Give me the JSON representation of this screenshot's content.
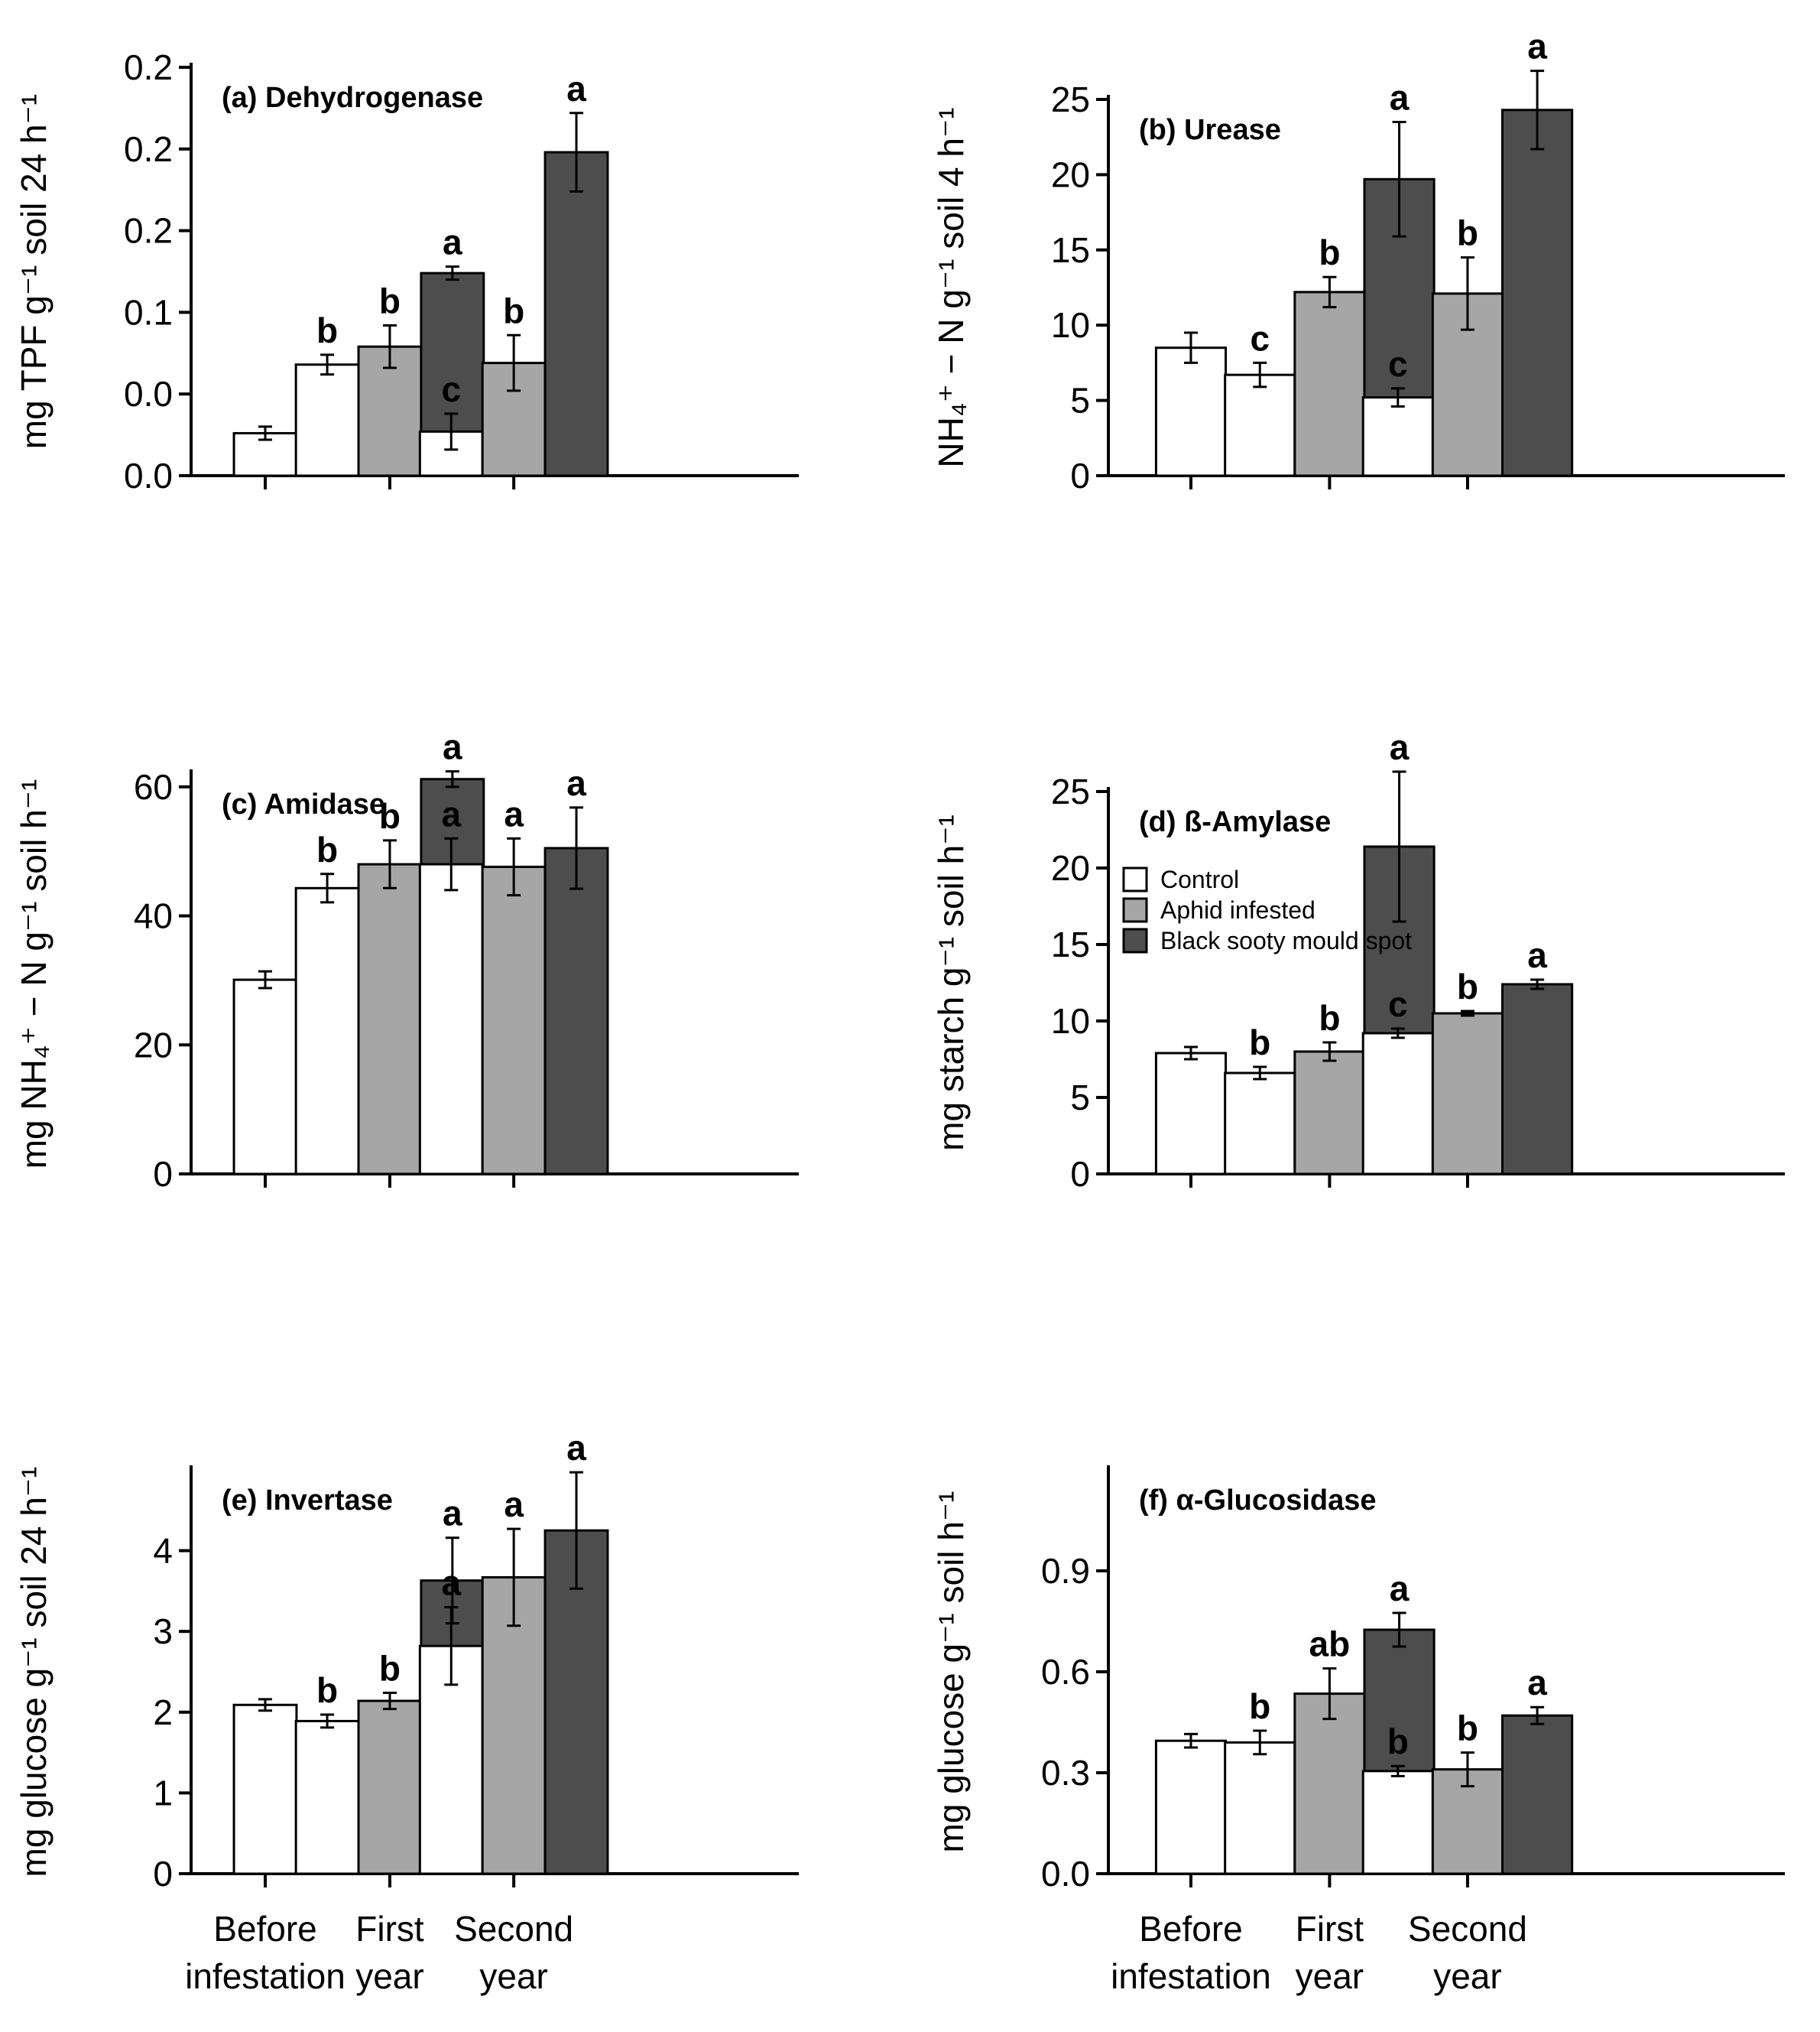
{
  "colors": {
    "Control": "#ffffff",
    "Aphid infested": "#a6a6a6",
    "Black sooty mould spot": "#4d4d4d",
    "axis": "#000000"
  },
  "legend": {
    "entries": [
      "Control",
      "Aphid infested",
      "Black sooty mould spot"
    ]
  },
  "x_categories": [
    [
      "Before",
      "infestation"
    ],
    [
      "First",
      "year"
    ],
    [
      "Second",
      "year"
    ]
  ],
  "chart_data": [
    {
      "type": "bar",
      "title": "(a) Dehydrogenase",
      "ylabel": "mg TPF g⁻¹ soil 24 h⁻¹",
      "ylim": [
        0,
        0.25
      ],
      "yticks": [
        0,
        0.05,
        0.1,
        0.15,
        0.2,
        0.25
      ],
      "ytick_labels": [
        "0.0",
        "0.0",
        "0.1",
        "0.2",
        "0.2",
        "0.2"
      ],
      "grid": false,
      "groups": [
        {
          "category": "Before infestation",
          "bars": [
            {
              "series": "Control",
              "value": 0.026,
              "err": 0.004,
              "letter": ""
            }
          ]
        },
        {
          "category": "First year",
          "bars": [
            {
              "series": "Control",
              "value": 0.068,
              "err": 0.006,
              "letter": "b"
            },
            {
              "series": "Aphid infested",
              "value": 0.079,
              "err": 0.013,
              "letter": "b"
            },
            {
              "series": "Black sooty mould spot",
              "value": 0.124,
              "err": 0.004,
              "letter": "a"
            }
          ]
        },
        {
          "category": "Second year",
          "bars": [
            {
              "series": "Control",
              "value": 0.027,
              "err": 0.011,
              "letter": "c"
            },
            {
              "series": "Aphid infested",
              "value": 0.069,
              "err": 0.017,
              "letter": "b"
            },
            {
              "series": "Black sooty mould spot",
              "value": 0.198,
              "err": 0.024,
              "letter": "a"
            }
          ]
        }
      ]
    },
    {
      "type": "bar",
      "title": "(b) Urease",
      "ylabel": "NH₄⁺ − N g⁻¹ soil 4 h⁻¹",
      "ylim": [
        0,
        25
      ],
      "yticks": [
        0,
        5,
        10,
        15,
        20,
        25
      ],
      "ytick_labels": [
        "0",
        "5",
        "10",
        "15",
        "20",
        "25"
      ],
      "grid": false,
      "groups": [
        {
          "category": "Before infestation",
          "bars": [
            {
              "series": "Control",
              "value": 8.5,
              "err": 1.0,
              "letter": ""
            }
          ]
        },
        {
          "category": "First year",
          "bars": [
            {
              "series": "Control",
              "value": 6.7,
              "err": 0.8,
              "letter": "c"
            },
            {
              "series": "Aphid infested",
              "value": 12.2,
              "err": 1.0,
              "letter": "b"
            },
            {
              "series": "Black sooty mould spot",
              "value": 19.7,
              "err": 3.8,
              "letter": "a"
            }
          ]
        },
        {
          "category": "Second year",
          "bars": [
            {
              "series": "Control",
              "value": 5.2,
              "err": 0.6,
              "letter": "c"
            },
            {
              "series": "Aphid infested",
              "value": 12.1,
              "err": 2.4,
              "letter": "b"
            },
            {
              "series": "Black sooty mould spot",
              "value": 24.3,
              "err": 2.6,
              "letter": "a"
            }
          ]
        }
      ]
    },
    {
      "type": "bar",
      "title": "(c) Amidase",
      "ylabel": "mg NH₄⁺ − N g⁻¹ soil h⁻¹",
      "ylim": [
        0,
        62
      ],
      "yticks": [
        0,
        20,
        40,
        60
      ],
      "ytick_labels": [
        "0",
        "20",
        "40",
        "60"
      ],
      "grid": false,
      "groups": [
        {
          "category": "Before infestation",
          "bars": [
            {
              "series": "Control",
              "value": 30.1,
              "err": 1.3,
              "letter": ""
            }
          ]
        },
        {
          "category": "First year",
          "bars": [
            {
              "series": "Control",
              "value": 44.3,
              "err": 2.2,
              "letter": "b"
            },
            {
              "series": "Aphid infested",
              "value": 48.0,
              "err": 3.7,
              "letter": "b"
            },
            {
              "series": "Black sooty mould spot",
              "value": 61.2,
              "err": 1.2,
              "letter": "a"
            }
          ]
        },
        {
          "category": "Second year",
          "bars": [
            {
              "series": "Control",
              "value": 48.0,
              "err": 4.0,
              "letter": "a"
            },
            {
              "series": "Aphid infested",
              "value": 47.6,
              "err": 4.4,
              "letter": "a"
            },
            {
              "series": "Black sooty mould spot",
              "value": 50.5,
              "err": 6.3,
              "letter": "a"
            }
          ]
        }
      ]
    },
    {
      "type": "bar",
      "title": "(d) ß-Amylase",
      "ylabel": "mg starch g⁻¹ soil h⁻¹",
      "ylim": [
        0,
        25
      ],
      "yticks": [
        0,
        5,
        10,
        15,
        20,
        25
      ],
      "ytick_labels": [
        "0",
        "5",
        "10",
        "15",
        "20",
        "25"
      ],
      "grid": false,
      "legend": "top-left",
      "groups": [
        {
          "category": "Before infestation",
          "bars": [
            {
              "series": "Control",
              "value": 7.9,
              "err": 0.4,
              "letter": ""
            }
          ]
        },
        {
          "category": "First year",
          "bars": [
            {
              "series": "Control",
              "value": 6.6,
              "err": 0.4,
              "letter": "b"
            },
            {
              "series": "Aphid infested",
              "value": 8.0,
              "err": 0.6,
              "letter": "b"
            },
            {
              "series": "Black sooty mould spot",
              "value": 21.4,
              "err": 4.9,
              "letter": "a"
            }
          ]
        },
        {
          "category": "Second year",
          "bars": [
            {
              "series": "Control",
              "value": 9.2,
              "err": 0.3,
              "letter": "c"
            },
            {
              "series": "Aphid infested",
              "value": 10.5,
              "err": 0.15,
              "letter": "b"
            },
            {
              "series": "Black sooty mould spot",
              "value": 12.4,
              "err": 0.3,
              "letter": "a"
            }
          ]
        }
      ]
    },
    {
      "type": "bar",
      "title": "(e) Invertase",
      "ylabel": "mg glucose g⁻¹ soil 24 h⁻¹",
      "ylim": [
        0,
        5
      ],
      "yticks": [
        0,
        1,
        2,
        3,
        4
      ],
      "ytick_labels": [
        "0",
        "1",
        "2",
        "3",
        "4"
      ],
      "grid": false,
      "groups": [
        {
          "category": "Before infestation",
          "bars": [
            {
              "series": "Control",
              "value": 2.09,
              "err": 0.07,
              "letter": ""
            }
          ]
        },
        {
          "category": "First year",
          "bars": [
            {
              "series": "Control",
              "value": 1.89,
              "err": 0.08,
              "letter": "b"
            },
            {
              "series": "Aphid infested",
              "value": 2.14,
              "err": 0.1,
              "letter": "b"
            },
            {
              "series": "Black sooty mould spot",
              "value": 3.63,
              "err": 0.53,
              "letter": "a"
            }
          ]
        },
        {
          "category": "Second year",
          "bars": [
            {
              "series": "Control",
              "value": 2.82,
              "err": 0.48,
              "letter": "a"
            },
            {
              "series": "Aphid infested",
              "value": 3.67,
              "err": 0.6,
              "letter": "a"
            },
            {
              "series": "Black sooty mould spot",
              "value": 4.25,
              "err": 0.72,
              "letter": "a"
            }
          ]
        }
      ]
    },
    {
      "type": "bar",
      "title": "(f) α-Glucosidase",
      "ylabel": "mg glucose g⁻¹ soil h⁻¹",
      "ylim": [
        0,
        1.2
      ],
      "yticks": [
        0,
        0.3,
        0.6,
        0.9
      ],
      "ytick_labels": [
        "0.0",
        "0.3",
        "0.6",
        "0.9"
      ],
      "grid": false,
      "groups": [
        {
          "category": "Before infestation",
          "bars": [
            {
              "series": "Control",
              "value": 0.395,
              "err": 0.02,
              "letter": ""
            }
          ]
        },
        {
          "category": "First year",
          "bars": [
            {
              "series": "Control",
              "value": 0.39,
              "err": 0.035,
              "letter": "b"
            },
            {
              "series": "Aphid infested",
              "value": 0.535,
              "err": 0.075,
              "letter": "ab"
            },
            {
              "series": "Black sooty mould spot",
              "value": 0.725,
              "err": 0.05,
              "letter": "a"
            }
          ]
        },
        {
          "category": "Second year",
          "bars": [
            {
              "series": "Control",
              "value": 0.305,
              "err": 0.015,
              "letter": "b"
            },
            {
              "series": "Aphid infested",
              "value": 0.31,
              "err": 0.05,
              "letter": "b"
            },
            {
              "series": "Black sooty mould spot",
              "value": 0.47,
              "err": 0.025,
              "letter": "a"
            }
          ]
        }
      ]
    }
  ]
}
